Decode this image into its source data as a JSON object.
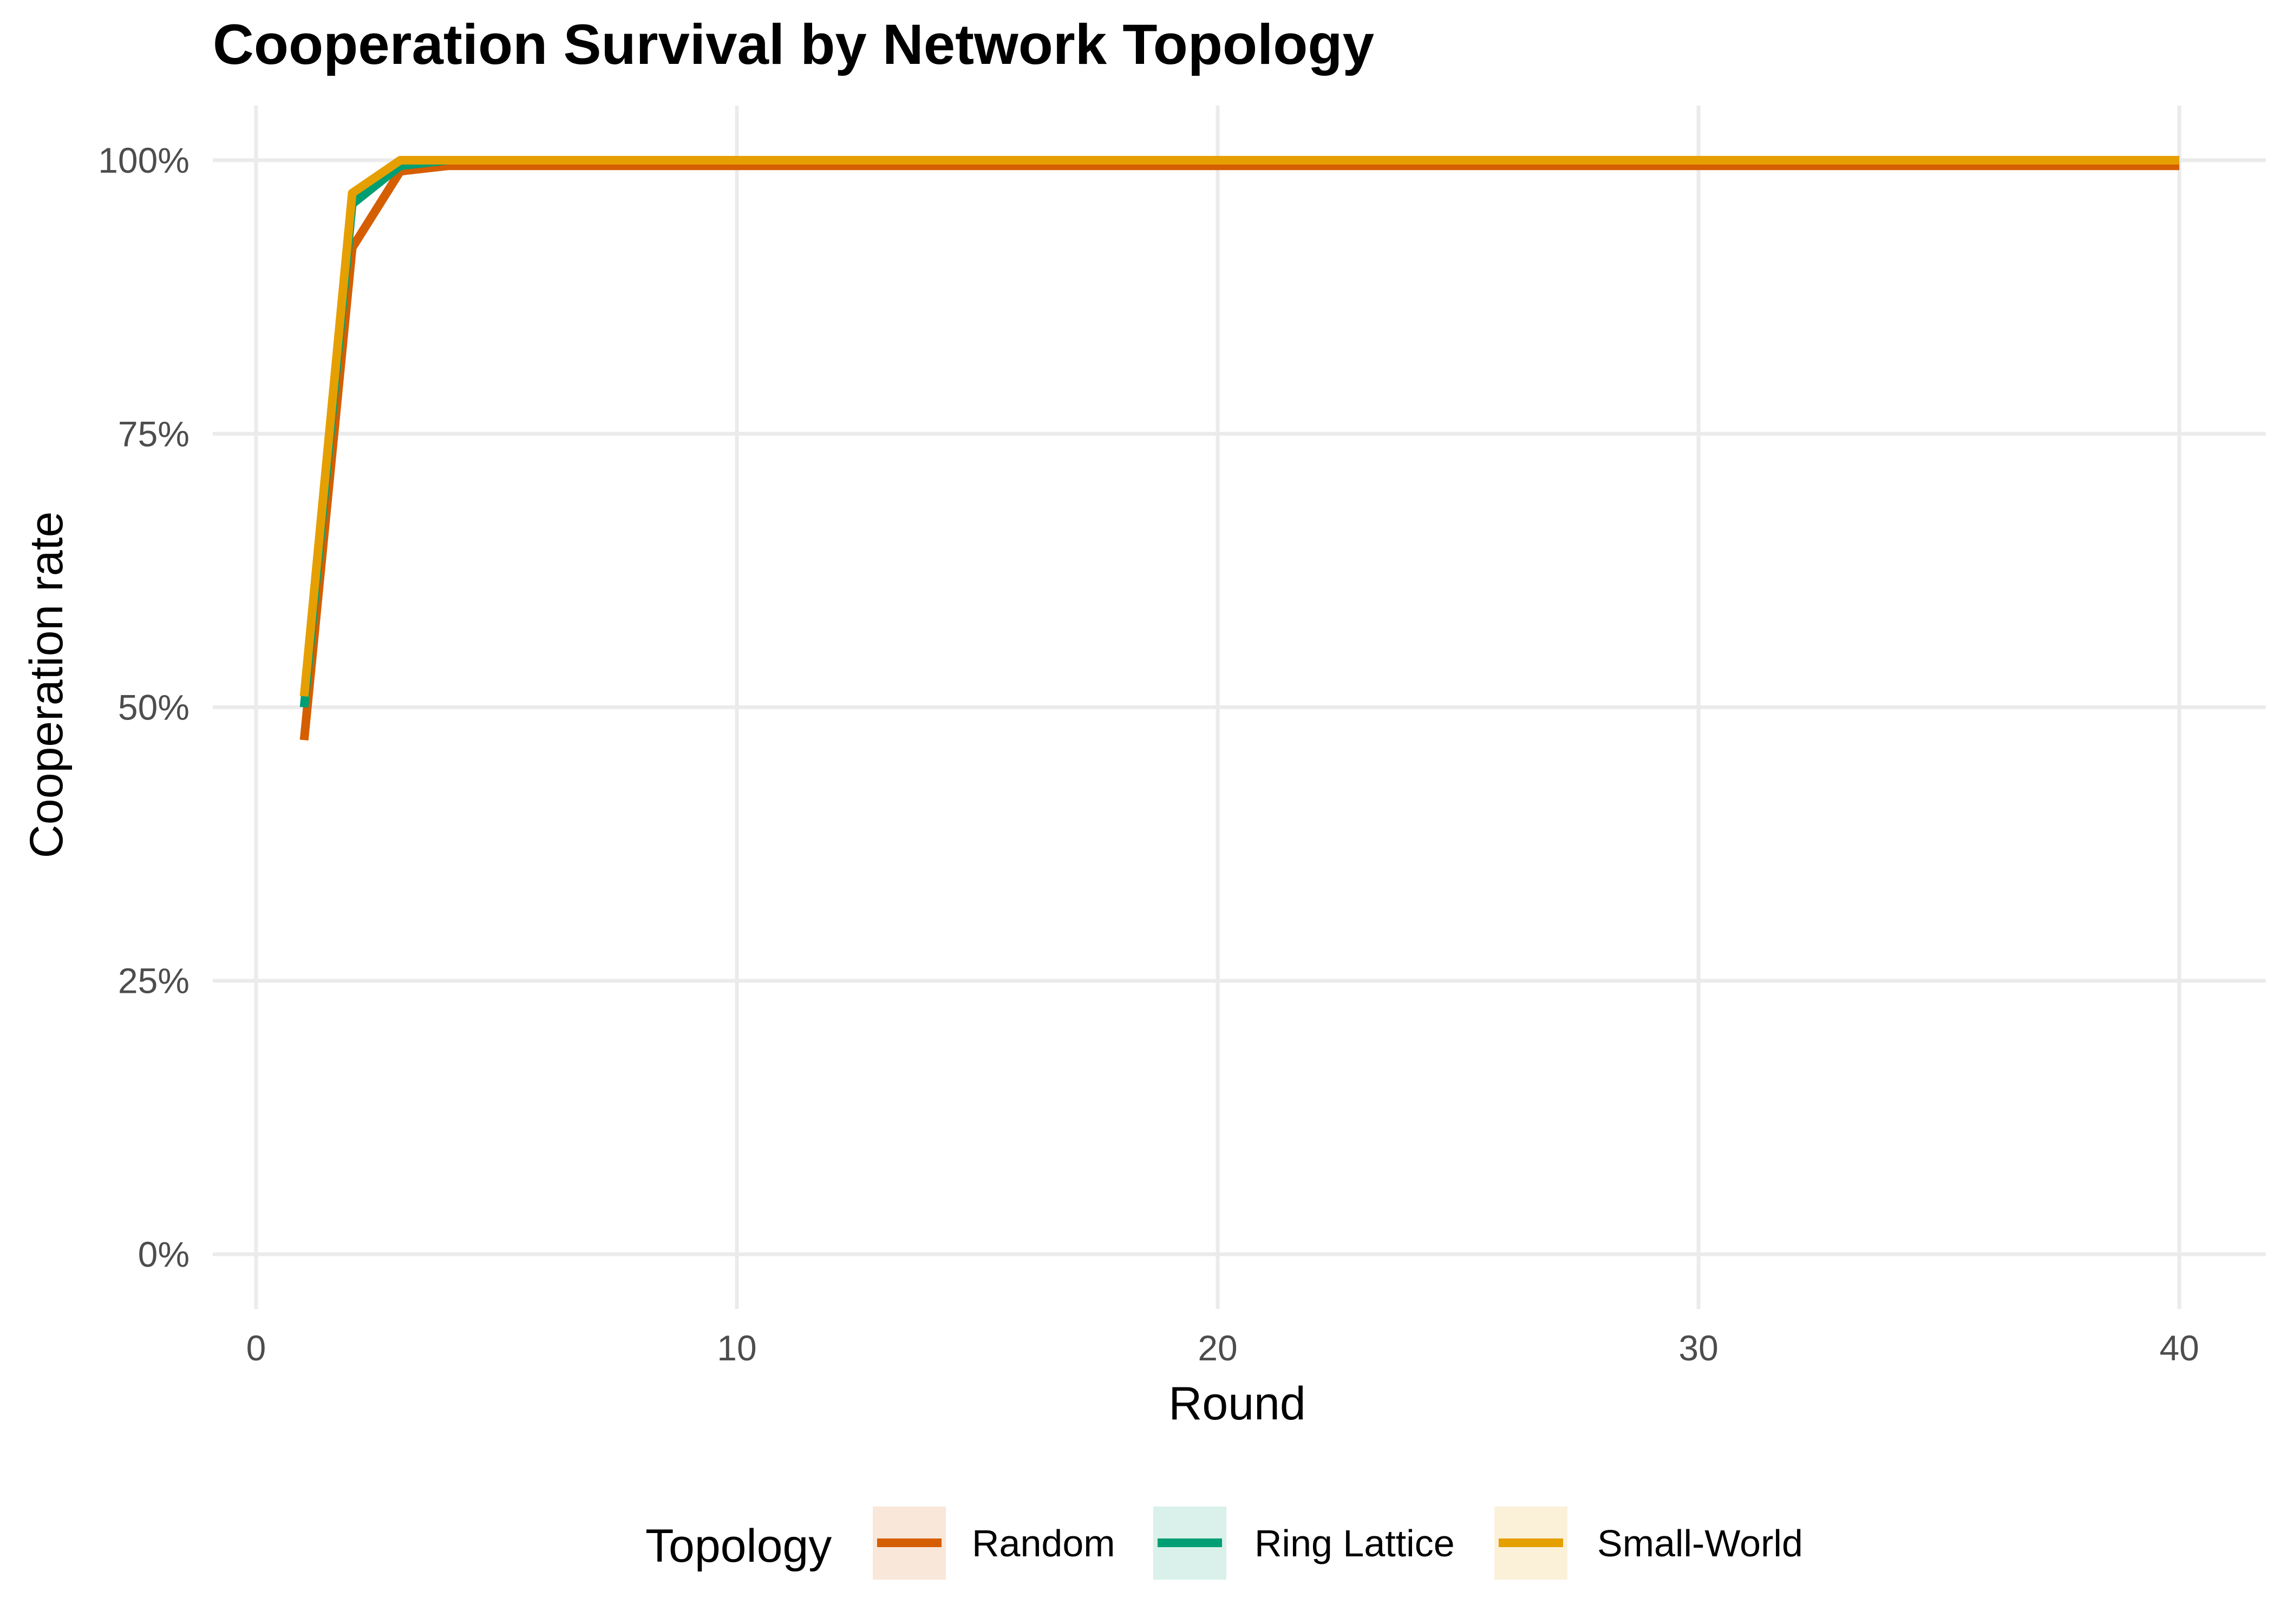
{
  "chart_data": {
    "type": "line",
    "title": "Cooperation Survival by Network Topology",
    "xlabel": "Round",
    "ylabel": "Cooperation rate",
    "xlim": [
      -0.9,
      41.8
    ],
    "ylim": [
      -0.05,
      1.05
    ],
    "x_ticks": [
      0,
      10,
      20,
      30,
      40
    ],
    "x_tick_labels": [
      "0",
      "10",
      "20",
      "30",
      "40"
    ],
    "y_ticks": [
      0,
      0.25,
      0.5,
      0.75,
      1.0
    ],
    "y_tick_labels": [
      "0%",
      "25%",
      "50%",
      "75%",
      "100%"
    ],
    "grid": true,
    "legend": {
      "title": "Topology",
      "position": "bottom"
    },
    "x": [
      1,
      2,
      3,
      4,
      5,
      6,
      7,
      8,
      9,
      10,
      11,
      12,
      13,
      14,
      15,
      16,
      17,
      18,
      19,
      20,
      21,
      22,
      23,
      24,
      25,
      26,
      27,
      28,
      29,
      30,
      31,
      32,
      33,
      34,
      35,
      36,
      37,
      38,
      39,
      40
    ],
    "series": [
      {
        "name": "Random",
        "color": "#D55E00",
        "values": [
          0.47,
          0.92,
          0.99,
          0.995,
          0.995,
          0.995,
          0.995,
          0.995,
          0.995,
          0.995,
          0.995,
          0.995,
          0.995,
          0.995,
          0.995,
          0.995,
          0.995,
          0.995,
          0.995,
          0.995,
          0.995,
          0.995,
          0.995,
          0.995,
          0.995,
          0.995,
          0.995,
          0.995,
          0.995,
          0.995,
          0.995,
          0.995,
          0.995,
          0.995,
          0.995,
          0.995,
          0.995,
          0.995,
          0.995,
          0.995
        ]
      },
      {
        "name": "Ring Lattice",
        "color": "#009E73",
        "values": [
          0.5,
          0.96,
          0.995,
          1.0,
          1.0,
          1.0,
          1.0,
          1.0,
          1.0,
          1.0,
          1.0,
          1.0,
          1.0,
          1.0,
          1.0,
          1.0,
          1.0,
          1.0,
          1.0,
          1.0,
          1.0,
          1.0,
          1.0,
          1.0,
          1.0,
          1.0,
          1.0,
          1.0,
          1.0,
          1.0,
          1.0,
          1.0,
          1.0,
          1.0,
          1.0,
          1.0,
          1.0,
          1.0,
          1.0,
          1.0
        ]
      },
      {
        "name": "Small-World",
        "color": "#E69F00",
        "values": [
          0.51,
          0.97,
          1.0,
          1.0,
          1.0,
          1.0,
          1.0,
          1.0,
          1.0,
          1.0,
          1.0,
          1.0,
          1.0,
          1.0,
          1.0,
          1.0,
          1.0,
          1.0,
          1.0,
          1.0,
          1.0,
          1.0,
          1.0,
          1.0,
          1.0,
          1.0,
          1.0,
          1.0,
          1.0,
          1.0,
          1.0,
          1.0,
          1.0,
          1.0,
          1.0,
          1.0,
          1.0,
          1.0,
          1.0,
          1.0
        ]
      }
    ]
  }
}
